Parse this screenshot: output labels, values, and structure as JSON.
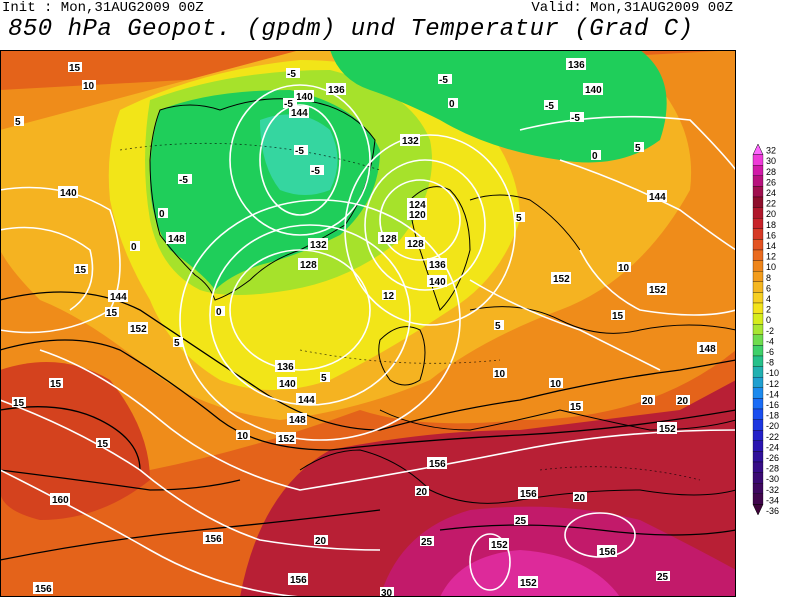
{
  "header": {
    "init": "Init : Mon,31AUG2009 00Z",
    "valid": "Valid: Mon,31AUG2009 00Z",
    "title": "850 hPa Geopot. (gpdm) und Temperatur (Grad C)"
  },
  "colors": {
    "green_cold": "#1fce5a",
    "lime": "#a6e22b",
    "yellow": "#f2e518",
    "light_orange": "#f5b321",
    "orange": "#ef8c1a",
    "dark_orange": "#e4631a",
    "red": "#d4421e",
    "crimson": "#b81f35",
    "magenta": "#c21a6a"
  },
  "geopotential_labels": [
    "136",
    "140",
    "144",
    "140",
    "136",
    "132",
    "128",
    "124",
    "120",
    "128",
    "128",
    "132",
    "136",
    "140",
    "144",
    "148",
    "152",
    "144",
    "140",
    "148",
    "152",
    "152",
    "152",
    "152",
    "156",
    "156",
    "160",
    "156",
    "156",
    "152",
    "156",
    "148",
    "144",
    "136",
    "140",
    "156",
    "152"
  ],
  "temperature_labels": [
    "-5",
    "-5",
    "-5",
    "-5",
    "-5",
    "-5",
    "-5",
    "-5",
    "0",
    "0",
    "0",
    "0",
    "0",
    "5",
    "5",
    "5",
    "5",
    "5",
    "5",
    "10",
    "10",
    "10",
    "10",
    "10",
    "12",
    "15",
    "15",
    "15",
    "15",
    "15",
    "15",
    "15",
    "15",
    "20",
    "20",
    "20",
    "20",
    "20",
    "25",
    "25",
    "25",
    "30"
  ],
  "legend": {
    "values": [
      "32",
      "30",
      "28",
      "26",
      "24",
      "22",
      "20",
      "18",
      "16",
      "14",
      "12",
      "10",
      "8",
      "6",
      "4",
      "2",
      "0",
      "-2",
      "-4",
      "-6",
      "-8",
      "-10",
      "-12",
      "-14",
      "-16",
      "-18",
      "-20",
      "-22",
      "-24",
      "-26",
      "-28",
      "-30",
      "-32",
      "-34",
      "-36"
    ],
    "colors": [
      "#ff66ff",
      "#ee3ad8",
      "#d11aa8",
      "#b8127e",
      "#a0104f",
      "#8e0f2c",
      "#b0172b",
      "#c8242a",
      "#d63a26",
      "#e35322",
      "#ea6b1e",
      "#ee851a",
      "#f29c1c",
      "#f4b620",
      "#f6cf22",
      "#f3e31c",
      "#d6ec1c",
      "#a8e632",
      "#6fdc4e",
      "#3fd06a",
      "#26c08a",
      "#22b0b0",
      "#20a0d0",
      "#1c8aee",
      "#1a6cf6",
      "#1a4ef0",
      "#1c36e0",
      "#2420c8",
      "#2a14b0",
      "#30109a",
      "#360c86",
      "#3a0a72",
      "#3e085f",
      "#40064c",
      "#3e043a"
    ]
  }
}
